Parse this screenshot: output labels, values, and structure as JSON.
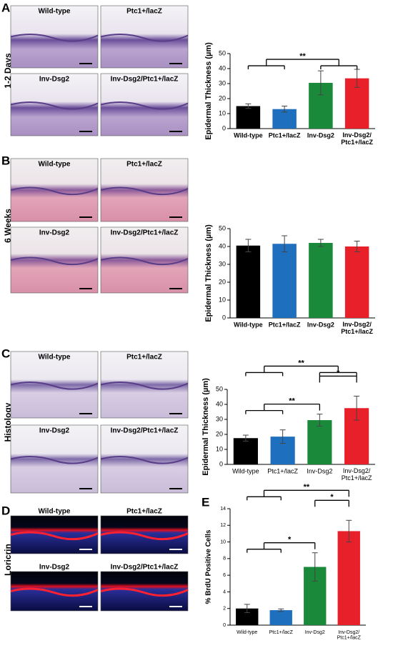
{
  "panels": [
    {
      "letter": "A",
      "side": "1-2 Days",
      "images": [
        "Wild-type",
        "Ptc1+/lacZ",
        "Inv-Dsg2",
        "Inv-Dsg2/Ptc1+/lacZ"
      ]
    },
    {
      "letter": "B",
      "side": "6 Weeks",
      "images": [
        "Wild-type",
        "Ptc1+/lacZ",
        "Inv-Dsg2",
        "Inv-Dsg2/Ptc1+/lacZ"
      ]
    },
    {
      "letter": "C",
      "side": "Histology",
      "images": [
        "Wild-type",
        "Ptc1+/lacZ",
        "Inv-Dsg2",
        "Inv-Dsg2/Ptc1+/lacZ"
      ]
    },
    {
      "letter": "D",
      "side": "Loricrin",
      "images": [
        "Wild-type",
        "Ptc1+/lacZ",
        "Inv-Dsg2",
        "Inv-Dsg2/Ptc1+/lacZ"
      ]
    }
  ],
  "chart_data": [
    {
      "type": "bar",
      "y_label": "Epidermal Thickness (µm)",
      "bold_labels": true,
      "categories": [
        "Wild-type",
        "Ptc1+/lacZ",
        "Inv-Dsg2",
        "Inv-Dsg2/\nPtc1+/lacZ"
      ],
      "values": [
        15,
        13,
        30.5,
        33.5
      ],
      "errors": [
        1.5,
        2,
        8,
        6
      ],
      "colors": [
        "#000000",
        "#1f6fbf",
        "#1a8a3a",
        "#e8202a"
      ],
      "ylim": [
        0,
        50
      ],
      "yticks": [
        0,
        10,
        20,
        30,
        40,
        50
      ],
      "annotations": [
        {
          "text": "**",
          "from": [
            0,
            1
          ],
          "to": [
            2,
            3
          ]
        }
      ]
    },
    {
      "type": "bar",
      "y_label": "Epidermal Thickness (µm)",
      "bold_labels": true,
      "categories": [
        "Wild-type",
        "Ptc1+/lacZ",
        "Inv-Dsg2",
        "Inv-Dsg2/\nPtc1+/lacZ"
      ],
      "values": [
        40.5,
        41.5,
        42,
        40
      ],
      "errors": [
        3.5,
        4.5,
        2,
        3
      ],
      "colors": [
        "#000000",
        "#1f6fbf",
        "#1a8a3a",
        "#e8202a"
      ],
      "ylim": [
        0,
        50
      ],
      "yticks": [
        0,
        10,
        20,
        30,
        40,
        50
      ],
      "annotations": []
    },
    {
      "type": "bar",
      "y_label": "Epidermal Thickness (µm)",
      "bold_labels": false,
      "categories": [
        "Wild-type",
        "Ptc1+/lacZ",
        "Inv-Dsg2",
        "Inv-Dsg2/\nPtc1+/lacZ"
      ],
      "values": [
        17.5,
        18.5,
        29.5,
        37.5
      ],
      "errors": [
        2,
        4.5,
        4,
        8
      ],
      "colors": [
        "#000000",
        "#1f6fbf",
        "#1a8a3a",
        "#e8202a"
      ],
      "ylim": [
        0,
        50
      ],
      "yticks": [
        0,
        10,
        20,
        30,
        40,
        50
      ],
      "annotations": [
        {
          "text": "**",
          "from": [
            0,
            1
          ],
          "to": [
            2,
            3
          ]
        },
        {
          "text": "*",
          "from": [
            2
          ],
          "to": [
            3
          ]
        },
        {
          "text": "**",
          "from": [
            0,
            1
          ],
          "to": [
            2
          ]
        }
      ]
    },
    {
      "type": "bar",
      "panel_label": "E",
      "y_label": "% BrdU Positive Cells",
      "bold_labels": false,
      "categories": [
        "Wild-type",
        "Ptc1+/lacZ",
        "Inv-Dsg2",
        "Inv-Dsg2/\nPtc1+/lacZ"
      ],
      "values": [
        2,
        1.8,
        7,
        11.3
      ],
      "errors": [
        0.5,
        0.15,
        1.7,
        1.3
      ],
      "colors": [
        "#000000",
        "#1f6fbf",
        "#1a8a3a",
        "#e8202a"
      ],
      "ylim": [
        0,
        14
      ],
      "yticks": [
        0,
        2,
        4,
        6,
        8,
        10,
        12,
        14
      ],
      "annotations": [
        {
          "text": "**",
          "from": [
            0,
            1
          ],
          "to": [
            3
          ]
        },
        {
          "text": "*",
          "from": [
            2
          ],
          "to": [
            3
          ]
        },
        {
          "text": "*",
          "from": [
            0,
            1
          ],
          "to": [
            2
          ]
        }
      ]
    }
  ]
}
